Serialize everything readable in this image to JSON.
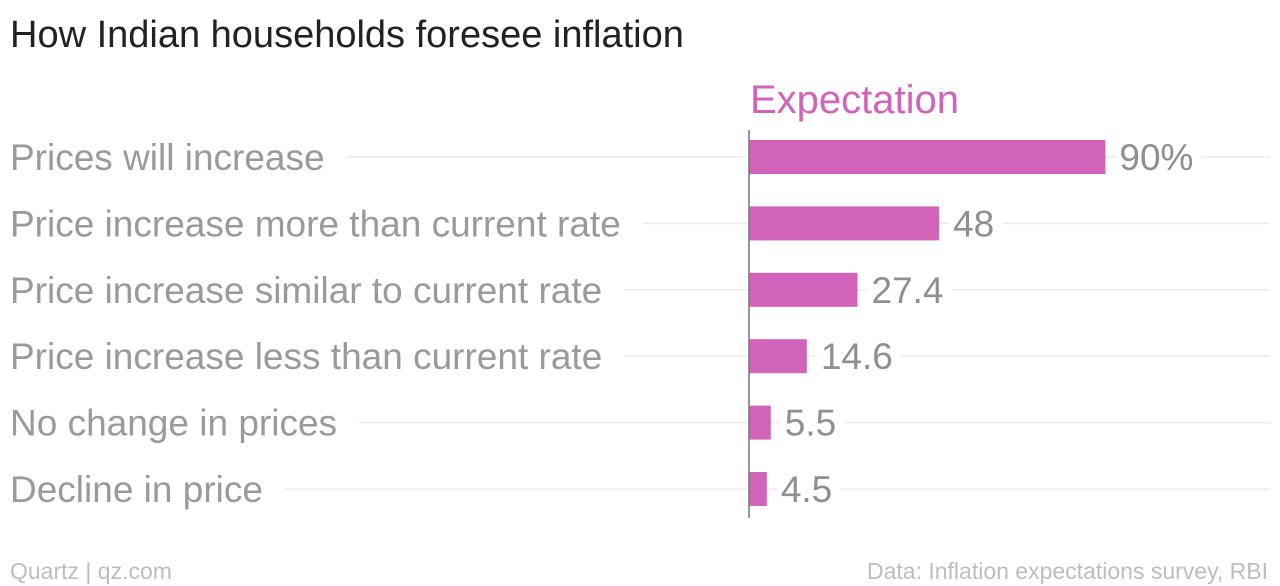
{
  "chart_data": {
    "type": "bar",
    "orientation": "horizontal",
    "title": "How Indian households foresee inflation",
    "series": [
      {
        "name": "Expectation",
        "color": "#d163b8",
        "values": [
          90,
          48,
          27.4,
          14.6,
          5.5,
          4.5
        ]
      }
    ],
    "categories": [
      "Prices will increase",
      "Price increase more than current rate",
      "Price increase similar to current rate",
      "Price increase less than current rate",
      "No change in prices",
      "Decline in price"
    ],
    "value_labels": [
      "90%",
      "48",
      "27.4",
      "14.6",
      "5.5",
      "4.5"
    ],
    "xlim": [
      0,
      100
    ],
    "grid": true
  },
  "footer": {
    "left": "Quartz | qz.com",
    "right": "Data: Inflation expectations survey, RBI"
  }
}
